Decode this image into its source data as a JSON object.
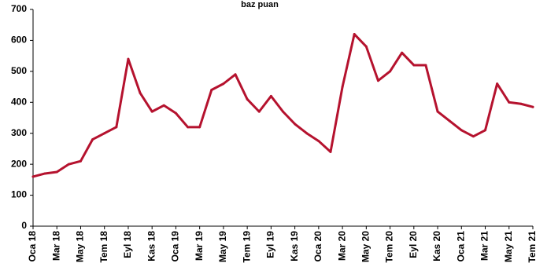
{
  "chart_data": {
    "type": "line",
    "title": "baz puan",
    "xlabel": "",
    "ylabel": "",
    "ylim": [
      0,
      700
    ],
    "y_ticks": [
      "0",
      "100",
      "200",
      "300",
      "400",
      "500",
      "600",
      "700"
    ],
    "x_tick_labels": [
      "Oca 18",
      "Mar 18",
      "May 18",
      "Tem 18",
      "Eyl 18",
      "Kas 18",
      "Oca 19",
      "Mar 19",
      "May 19",
      "Tem 19",
      "Eyl 19",
      "Kas 19",
      "Oca 20",
      "Mar 20",
      "May 20",
      "Tem 20",
      "Eyl 20",
      "Kas 20",
      "Oca 21",
      "Mar 21",
      "May 21",
      "Tem 21"
    ],
    "grid": false,
    "series_color": "#B5122E",
    "x": [
      "Oca 18",
      "Şub 18",
      "Mar 18",
      "Nis 18",
      "May 18",
      "Haz 18",
      "Tem 18",
      "Ağu 18",
      "Eyl 18",
      "Eki 18",
      "Kas 18",
      "Ara 18",
      "Oca 19",
      "Şub 19",
      "Mar 19",
      "Nis 19",
      "May 19",
      "Haz 19",
      "Tem 19",
      "Ağu 19",
      "Eyl 19",
      "Eki 19",
      "Kas 19",
      "Ara 19",
      "Oca 20",
      "Şub 20",
      "Mar 20",
      "Nis 20",
      "May 20",
      "Haz 20",
      "Tem 20",
      "Ağu 20",
      "Eyl 20",
      "Eki 20",
      "Kas 20",
      "Ara 20",
      "Oca 21",
      "Şub 21",
      "Mar 21",
      "Nis 21",
      "May 21",
      "Haz 21",
      "Tem 21"
    ],
    "values": [
      160,
      170,
      175,
      200,
      210,
      280,
      300,
      320,
      540,
      430,
      370,
      390,
      365,
      320,
      320,
      440,
      460,
      490,
      410,
      370,
      420,
      370,
      330,
      300,
      275,
      240,
      450,
      620,
      580,
      470,
      500,
      560,
      520,
      520,
      370,
      340,
      310,
      290,
      310,
      460,
      400,
      395,
      385
    ]
  }
}
